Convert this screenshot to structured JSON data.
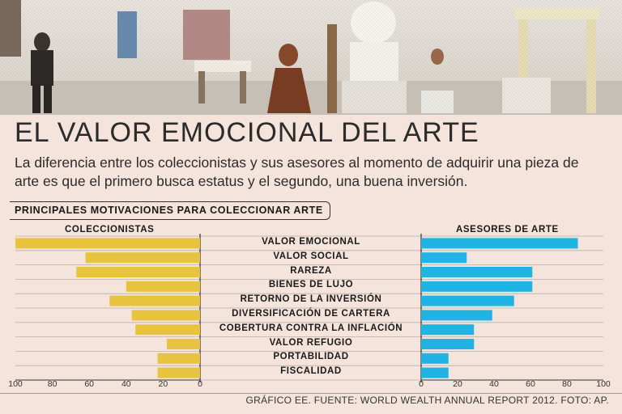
{
  "title": "EL VALOR EMOCIONAL DEL ARTE",
  "subtitle": "La diferencia entre los coleccionistas y sus asesores al momento de adquirir una pieza de arte es que el primero busca estatus y el segundo, una buena inversión.",
  "section_title": "PRINCIPALES MOTIVACIONES PARA COLECCIONAR ARTE",
  "source": "GRÁFICO EE. FUENTE: WORLD WEALTH ANNUAL REPORT 2012. FOTO: AP.",
  "colors": {
    "coleccionistas": "#e8c43c",
    "asesores": "#1eb4e6",
    "grid": "#b8b0aa",
    "background": "#f4e4dc"
  },
  "chart_data": {
    "type": "bar",
    "categories": [
      "VALOR EMOCIONAL",
      "VALOR SOCIAL",
      "RAREZA",
      "BIENES DE LUJO",
      "RETORNO DE LA INVERSIÓN",
      "DIVERSIFICACIÓN DE CARTERA",
      "COBERTURA CONTRA LA INFLACIÓN",
      "VALOR REFUGIO",
      "PORTABILIDAD",
      "FISCALIDAD"
    ],
    "series": [
      {
        "name": "COLECCIONISTAS",
        "values": [
          100,
          62,
          67,
          40,
          49,
          37,
          35,
          18,
          23,
          23
        ]
      },
      {
        "name": "ASESORES DE ARTE",
        "values": [
          86,
          25,
          61,
          61,
          51,
          39,
          29,
          29,
          15,
          15
        ]
      }
    ],
    "left_ticks": [
      "100",
      "80",
      "60",
      "40",
      "20",
      "0"
    ],
    "right_ticks": [
      "0",
      "20",
      "40",
      "60",
      "80",
      "100"
    ],
    "xlim": [
      0,
      100
    ],
    "grid": true
  }
}
